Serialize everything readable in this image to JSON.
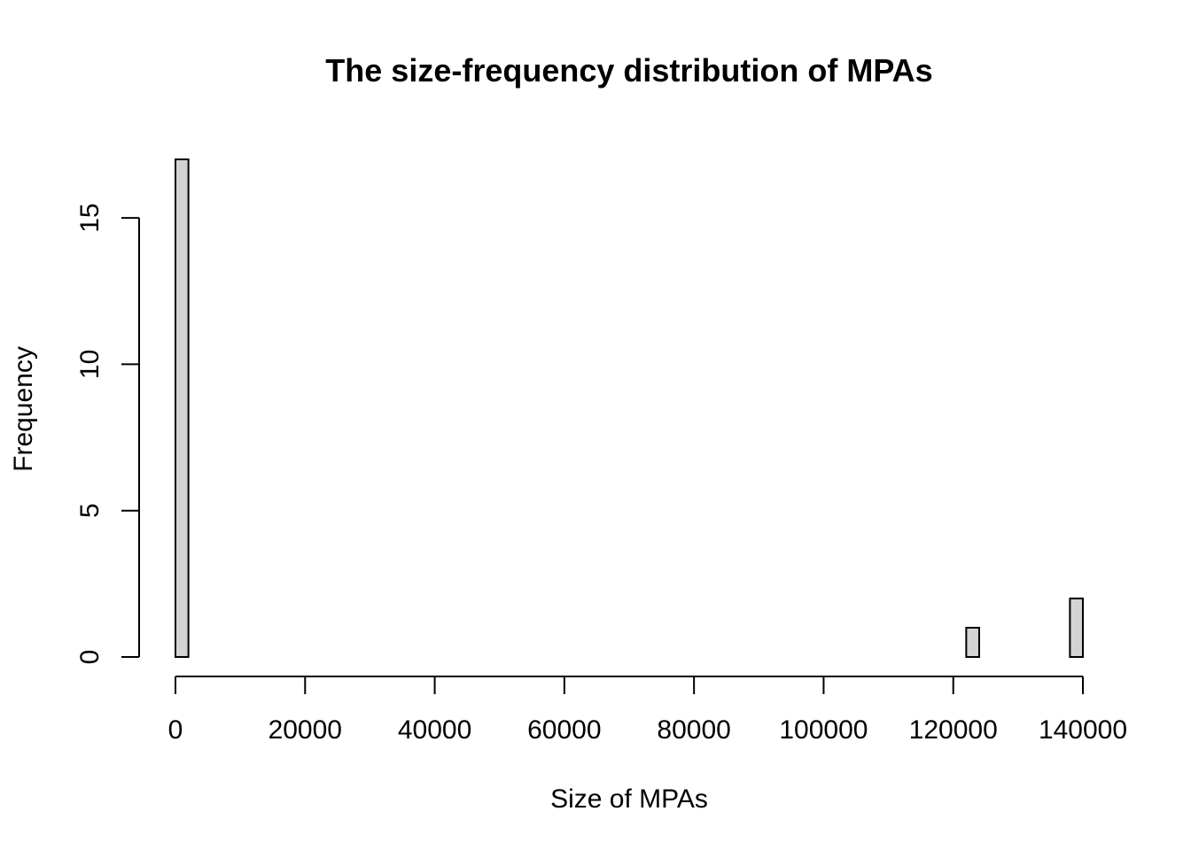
{
  "chart_data": {
    "type": "bar",
    "title": "The size-frequency distribution of MPAs",
    "xlabel": "Size of MPAs",
    "ylabel": "Frequency",
    "bin_width": 2000,
    "xlim": [
      0,
      140000
    ],
    "ylim": [
      0,
      17
    ],
    "x_ticks": [
      0,
      20000,
      40000,
      60000,
      80000,
      100000,
      120000,
      140000
    ],
    "x_tick_labels": [
      "0",
      "20000",
      "40000",
      "60000",
      "80000",
      "100000",
      "120000",
      "140000"
    ],
    "y_ticks": [
      0,
      5,
      10,
      15
    ],
    "y_tick_labels": [
      "0",
      "5",
      "10",
      "15"
    ],
    "bins": [
      {
        "start": 0,
        "end": 2000,
        "count": 17
      },
      {
        "start": 122000,
        "end": 124000,
        "count": 1
      },
      {
        "start": 138000,
        "end": 140000,
        "count": 2
      }
    ],
    "bar_fill": "#d3d3d3",
    "grid": false
  }
}
